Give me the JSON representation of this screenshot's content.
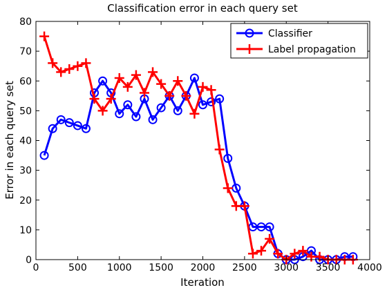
{
  "chart_data": {
    "type": "line",
    "title": "Classification error in each query set",
    "xlabel": "Iteration",
    "ylabel": "Error in each query set",
    "xlim": [
      0,
      4000
    ],
    "ylim": [
      0,
      80
    ],
    "xticks": [
      0,
      500,
      1000,
      1500,
      2000,
      2500,
      3000,
      3500,
      4000
    ],
    "yticks": [
      0,
      10,
      20,
      30,
      40,
      50,
      60,
      70,
      80
    ],
    "x_tick_labels": [
      "0",
      "500",
      "1000",
      "1500",
      "2000",
      "2500",
      "3000",
      "3500",
      "4000"
    ],
    "y_tick_labels": [
      "0",
      "10",
      "20",
      "30",
      "40",
      "50",
      "60",
      "70",
      "80"
    ],
    "grid": false,
    "legend_position": "top-right",
    "x": [
      100,
      200,
      300,
      400,
      500,
      600,
      700,
      800,
      900,
      1000,
      1100,
      1200,
      1300,
      1400,
      1500,
      1600,
      1700,
      1800,
      1900,
      2000,
      2100,
      2200,
      2300,
      2400,
      2500,
      2600,
      2700,
      2800,
      2900,
      3000,
      3100,
      3200,
      3300,
      3400,
      3500,
      3600,
      3700,
      3800
    ],
    "series": [
      {
        "name": "Classifier",
        "color": "#0000ff",
        "marker": "circle",
        "values": [
          35,
          44,
          47,
          46,
          45,
          44,
          56,
          60,
          56,
          49,
          52,
          48,
          54,
          47,
          51,
          55,
          50,
          55,
          61,
          52,
          53,
          54,
          34,
          24,
          18,
          11,
          11,
          11,
          2,
          0,
          0,
          1,
          3,
          0,
          0,
          0,
          1,
          1
        ]
      },
      {
        "name": "Label propagation",
        "color": "#ff0000",
        "marker": "plus",
        "values": [
          75,
          66,
          63,
          64,
          65,
          66,
          54,
          50,
          54,
          61,
          58,
          62,
          56,
          63,
          59,
          55,
          60,
          55,
          49,
          58,
          57,
          37,
          24,
          18,
          18,
          2,
          3,
          7,
          2,
          0,
          2,
          3,
          1,
          1,
          0,
          0,
          0,
          0
        ]
      }
    ]
  }
}
